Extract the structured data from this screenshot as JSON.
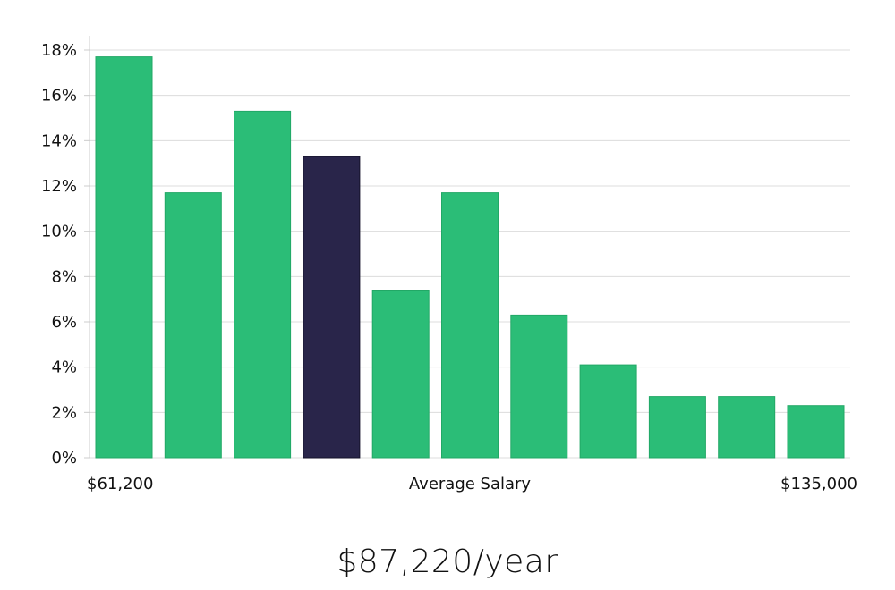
{
  "chart_data": {
    "type": "bar",
    "categories": [
      "1",
      "2",
      "3",
      "4",
      "5",
      "6",
      "7",
      "8",
      "9",
      "10",
      "11"
    ],
    "values": [
      17.7,
      11.7,
      15.3,
      13.3,
      7.4,
      11.7,
      6.3,
      4.1,
      2.7,
      2.7,
      2.3
    ],
    "highlight_index": 3,
    "ylim": [
      0,
      18
    ],
    "yticks": [
      0,
      2,
      4,
      6,
      8,
      10,
      12,
      14,
      16,
      18
    ],
    "ytick_suffix": "%",
    "grid": true,
    "xlabel": "Average Salary",
    "x_min_label": "$61,200",
    "x_max_label": "$135,000",
    "colors": {
      "bar": "#2bbd77",
      "highlight": "#29254a",
      "grid": "#dcdcdc",
      "axis": "#cccccc"
    }
  },
  "salary_text": "$87,220/year"
}
